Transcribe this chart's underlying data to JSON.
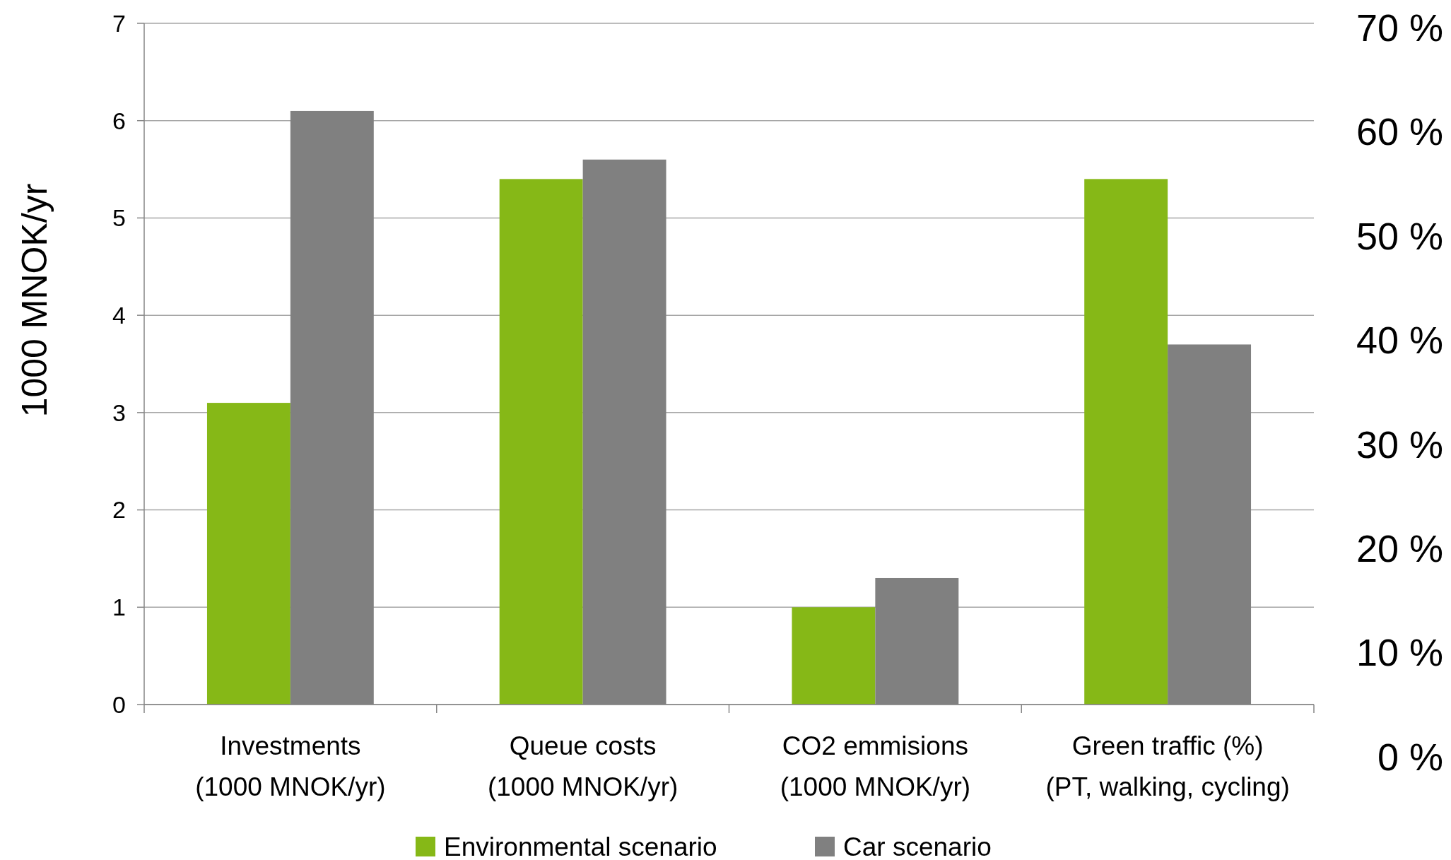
{
  "chart_data": {
    "type": "bar",
    "categories": [
      "Investments\n(1000 MNOK/yr)",
      "Queue costs\n(1000 MNOK/yr)",
      "CO2 emmisions\n(1000 MNOK/yr)",
      "Green traffic (%)\n(PT, walking, cycling)"
    ],
    "series": [
      {
        "name": "Environmental scenario",
        "color": "#86b817",
        "values": [
          3.1,
          5.4,
          1.0,
          5.4
        ]
      },
      {
        "name": "Car scenario",
        "color": "#808080",
        "values": [
          6.1,
          5.6,
          1.3,
          3.7
        ]
      }
    ],
    "ylabel": "1000 MNOK/yr",
    "ylim": [
      0,
      7
    ],
    "yticks": [
      0,
      1,
      2,
      3,
      4,
      5,
      6,
      7
    ],
    "y2lim": [
      0,
      70
    ],
    "y2ticks": [
      {
        "value": 0,
        "label": "0 %"
      },
      {
        "value": 10,
        "label": "10 %"
      },
      {
        "value": 20,
        "label": "20 %"
      },
      {
        "value": 30,
        "label": "30 %"
      },
      {
        "value": 40,
        "label": "40 %"
      },
      {
        "value": 50,
        "label": "50 %"
      },
      {
        "value": 60,
        "label": "60 %"
      },
      {
        "value": 70,
        "label": "70 %"
      }
    ],
    "grid": "y",
    "legend": "bottom"
  }
}
